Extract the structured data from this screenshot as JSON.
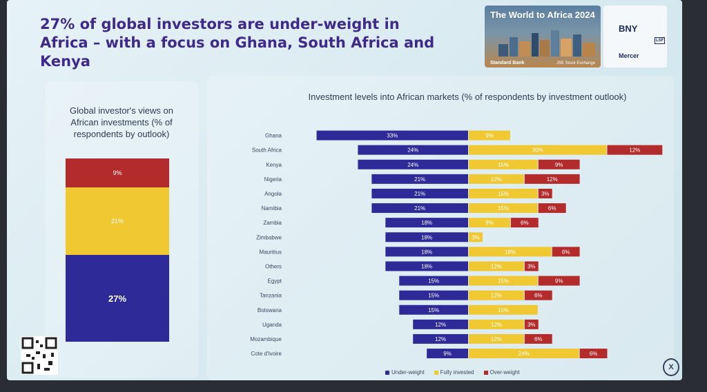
{
  "headline": "27% of global investors are under-weight in Africa – with a focus on Ghana, South Africa and Kenya",
  "event_logo": {
    "title": "The World to Africa 2024",
    "sponsor": "Standard Bank",
    "exchange": "JSE Stock Exchange"
  },
  "partner_logos": [
    "BNY",
    "Mercer",
    "LSF"
  ],
  "colors": {
    "under_weight": "#2e2a97",
    "fully_invested": "#f0c831",
    "over_weight": "#b32b2b",
    "headline": "#3f2a8c"
  },
  "chart_data": [
    {
      "type": "bar",
      "orientation": "stacked-vertical",
      "title": "Global investor's views on African investments (% of respondents by outlook)",
      "categories": [
        "Global"
      ],
      "series": [
        {
          "name": "Under-weight",
          "values": [
            27
          ],
          "labels": [
            "27%"
          ]
        },
        {
          "name": "Fully invested",
          "values": [
            21
          ],
          "labels": [
            "21%"
          ]
        },
        {
          "name": "Over-weight",
          "values": [
            9
          ],
          "labels": [
            "9%"
          ]
        }
      ]
    },
    {
      "type": "bar",
      "orientation": "diverging-horizontal",
      "title": "Investment levels into African markets (% of respondents by investment outlook)",
      "categories": [
        "Ghana",
        "South Africa",
        "Kenya",
        "Nigeria",
        "Angola",
        "Namibia",
        "Zambia",
        "Zimbabwe",
        "Mauritius",
        "Others",
        "Egypt",
        "Tanzania",
        "Botswana",
        "Uganda",
        "Mozambique",
        "Cote d'Ivoire"
      ],
      "series": [
        {
          "name": "Under-weight",
          "values": [
            33,
            24,
            24,
            21,
            21,
            21,
            18,
            18,
            18,
            18,
            15,
            15,
            15,
            12,
            12,
            9
          ]
        },
        {
          "name": "Fully invested",
          "values": [
            9,
            30,
            15,
            12,
            15,
            15,
            9,
            3,
            18,
            12,
            15,
            12,
            15,
            12,
            12,
            24
          ]
        },
        {
          "name": "Over-weight",
          "values": [
            0,
            12,
            9,
            12,
            3,
            6,
            6,
            0,
            6,
            3,
            9,
            6,
            0,
            3,
            6,
            6
          ]
        }
      ],
      "legend": [
        "Under-weight",
        "Fully invested",
        "Over-weight"
      ],
      "legend_position": "bottom",
      "grid": false
    }
  ]
}
